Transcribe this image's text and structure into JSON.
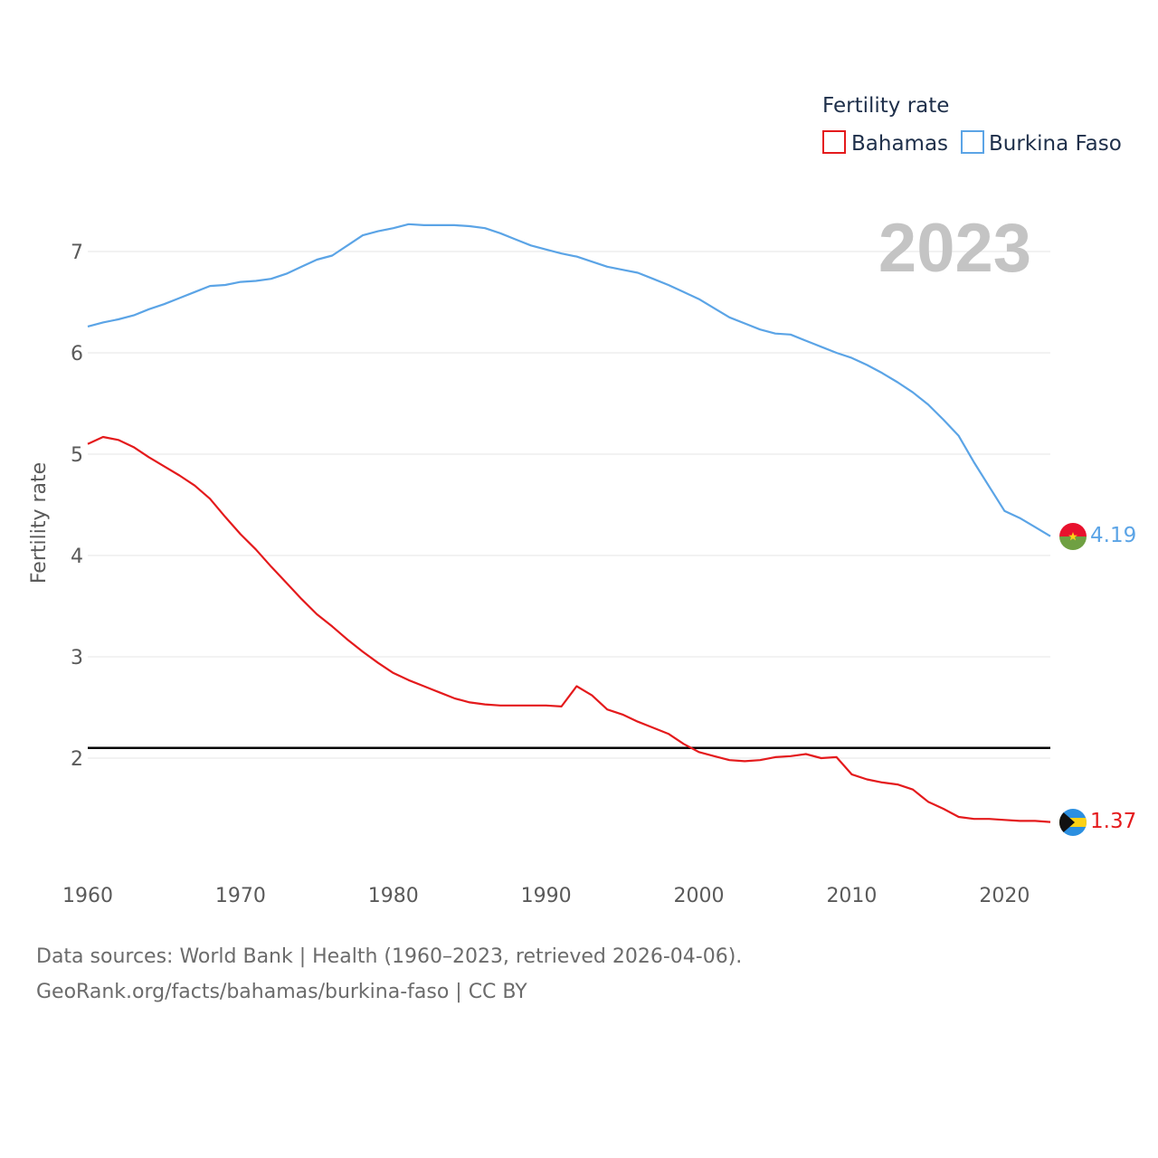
{
  "chart_data": {
    "type": "line",
    "title": "",
    "year_label": "2023",
    "xlabel": "",
    "ylabel": "Fertility rate",
    "xlim": [
      1960,
      2023
    ],
    "ylim": [
      1.0,
      7.5
    ],
    "x_ticks": [
      "1960",
      "1970",
      "1980",
      "1990",
      "2000",
      "2010",
      "2020"
    ],
    "x_tick_values": [
      1960,
      1970,
      1980,
      1990,
      2000,
      2010,
      2020
    ],
    "y_ticks": [
      "2",
      "3",
      "4",
      "5",
      "6",
      "7"
    ],
    "y_tick_values": [
      2,
      3,
      4,
      5,
      6,
      7
    ],
    "legend": {
      "title": "Fertility rate",
      "placement": "top-right",
      "entries": [
        "Bahamas",
        "Burkina Faso"
      ]
    },
    "reference_line": {
      "y": 2.1,
      "color": "#000000"
    },
    "x": [
      1960,
      1961,
      1962,
      1963,
      1964,
      1965,
      1966,
      1967,
      1968,
      1969,
      1970,
      1971,
      1972,
      1973,
      1974,
      1975,
      1976,
      1977,
      1978,
      1979,
      1980,
      1981,
      1982,
      1983,
      1984,
      1985,
      1986,
      1987,
      1988,
      1989,
      1990,
      1991,
      1992,
      1993,
      1994,
      1995,
      1996,
      1997,
      1998,
      1999,
      2000,
      2001,
      2002,
      2003,
      2004,
      2005,
      2006,
      2007,
      2008,
      2009,
      2010,
      2011,
      2012,
      2013,
      2014,
      2015,
      2016,
      2017,
      2018,
      2019,
      2020,
      2021,
      2022,
      2023
    ],
    "series": [
      {
        "name": "Bahamas",
        "color": "#e41a1c",
        "end_label": "1.37",
        "values": [
          5.1,
          5.17,
          5.14,
          5.07,
          4.97,
          4.88,
          4.79,
          4.69,
          4.56,
          4.38,
          4.21,
          4.06,
          3.89,
          3.73,
          3.57,
          3.42,
          3.3,
          3.17,
          3.05,
          2.94,
          2.84,
          2.77,
          2.71,
          2.65,
          2.59,
          2.55,
          2.53,
          2.52,
          2.52,
          2.52,
          2.52,
          2.51,
          2.71,
          2.62,
          2.48,
          2.43,
          2.36,
          2.3,
          2.24,
          2.14,
          2.06,
          2.02,
          1.98,
          1.97,
          1.98,
          2.01,
          2.02,
          2.04,
          2.0,
          2.01,
          1.84,
          1.79,
          1.76,
          1.74,
          1.69,
          1.57,
          1.5,
          1.42,
          1.4,
          1.4,
          1.39,
          1.38,
          1.38,
          1.37
        ]
      },
      {
        "name": "Burkina Faso",
        "color": "#5ba4e6",
        "end_label": "4.19",
        "values": [
          6.26,
          6.3,
          6.33,
          6.37,
          6.43,
          6.48,
          6.54,
          6.6,
          6.66,
          6.67,
          6.7,
          6.71,
          6.73,
          6.78,
          6.85,
          6.92,
          6.96,
          7.06,
          7.16,
          7.2,
          7.23,
          7.27,
          7.26,
          7.26,
          7.26,
          7.25,
          7.23,
          7.18,
          7.12,
          7.06,
          7.02,
          6.98,
          6.95,
          6.9,
          6.85,
          6.82,
          6.79,
          6.73,
          6.67,
          6.6,
          6.53,
          6.44,
          6.35,
          6.29,
          6.23,
          6.19,
          6.18,
          6.12,
          6.06,
          6.0,
          5.95,
          5.88,
          5.8,
          5.71,
          5.61,
          5.49,
          5.34,
          5.18,
          4.92,
          4.68,
          4.44,
          4.37,
          4.28,
          4.19
        ]
      }
    ]
  },
  "source_lines": [
    "Data sources: World Bank | Health (1960–2023, retrieved 2026-04-06).",
    "GeoRank.org/facts/bahamas/burkina-faso | CC BY"
  ]
}
